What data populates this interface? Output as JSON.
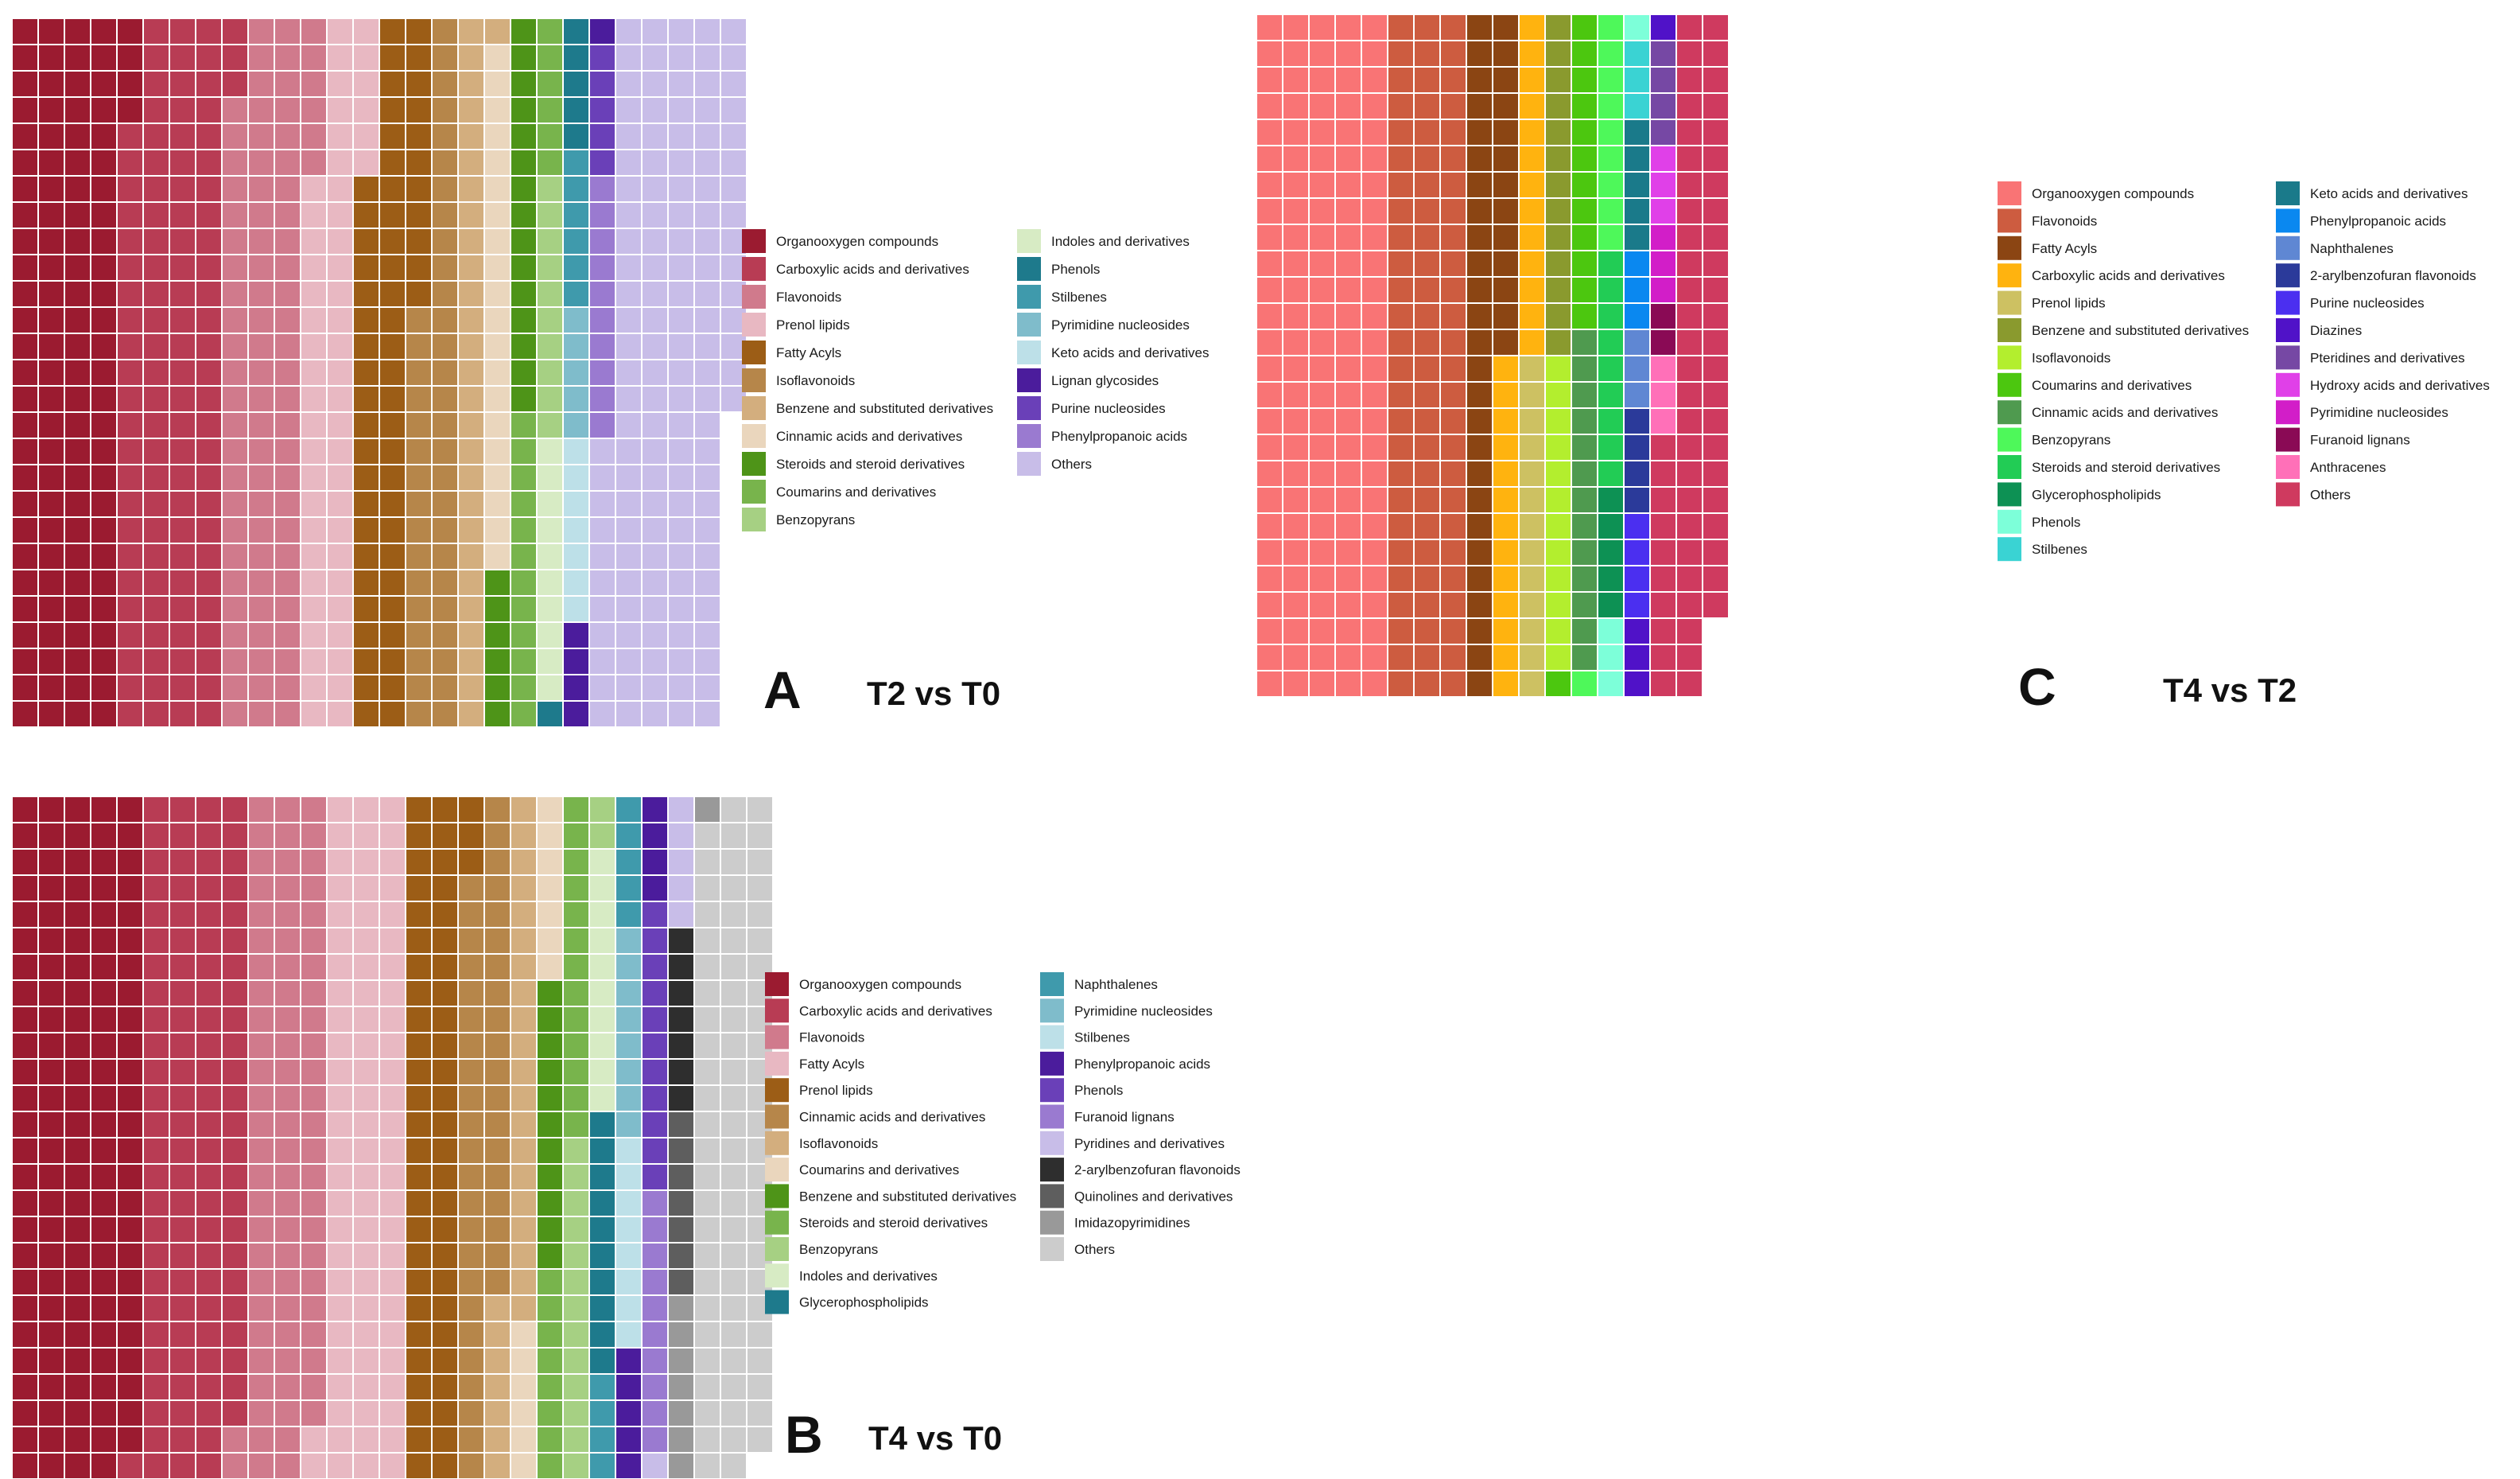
{
  "chart_data": [
    {
      "type": "waffle",
      "panel_label": "A",
      "title": "T2 vs T0",
      "unit": "one square = one metabolite",
      "legend_entries": [
        "Organooxygen compounds",
        "Carboxylic acids and derivatives",
        "Flavonoids",
        "Prenol lipids",
        "Fatty Acyls",
        "Isoflavonoids",
        "Benzene and substituted derivatives",
        "Cinnamic acids and derivatives",
        "Steroids and steroid derivatives",
        "Coumarins and derivatives",
        "Benzopyrans",
        "Indoles and derivatives",
        "Phenols",
        "Stilbenes",
        "Pyrimidine nucleosides",
        "Keto acids and derivatives",
        "Lignan glycosides",
        "Purine nucleosides",
        "Phenylpropanoic acids",
        "Others"
      ],
      "colors": [
        "#9b1b30",
        "#b83c54",
        "#d07a8c",
        "#e8b8c2",
        "#9c5d16",
        "#b6864a",
        "#d3ae7e",
        "#ead6bd",
        "#4e9418",
        "#78b44c",
        "#a6d083",
        "#d7ebc4",
        "#1e7a8c",
        "#3f9aac",
        "#7fbccb",
        "#bde0e8",
        "#4b1c9c",
        "#6a40b8",
        "#9a7ad0",
        "#c8bde8"
      ],
      "counts": [
        112,
        107,
        84,
        54,
        59,
        43,
        28,
        20,
        21,
        18,
        10,
        10,
        6,
        6,
        5,
        7,
        5,
        5,
        10,
        134
      ]
    },
    {
      "type": "waffle",
      "panel_label": "B",
      "title": "T4 vs T0",
      "unit": "one square = one metabolite",
      "legend_entries": [
        "Organooxygen compounds",
        "Carboxylic acids and derivatives",
        "Flavonoids",
        "Fatty Acyls",
        "Prenol lipids",
        "Cinnamic acids and derivatives",
        "Isoflavonoids",
        "Coumarins and derivatives",
        "Benzene and substituted derivatives",
        "Steroids and steroid derivatives",
        "Benzopyrans",
        "Indoles and derivatives",
        "Glycerophospholipids",
        "Naphthalenes",
        "Pyrimidine nucleosides",
        "Stilbenes",
        "Phenylpropanoic acids",
        "Phenols",
        "Furanoid lignans",
        "Pyridines and derivatives",
        "2-arylbenzofuran flavonoids",
        "Quinolines and derivatives",
        "Imidazopyrimidines",
        "Others"
      ],
      "colors": [
        "#9b1b30",
        "#b83c54",
        "#d07a8c",
        "#e8b8c2",
        "#9c5d16",
        "#b6864a",
        "#d3ae7e",
        "#ead6bd",
        "#4e9418",
        "#78b44c",
        "#a6d083",
        "#d7ebc4",
        "#1e7a8c",
        "#3f9aac",
        "#7fbccb",
        "#bde0e8",
        "#4b1c9c",
        "#6a40b8",
        "#9a7ad0",
        "#c8bde8",
        "#2e2e2e",
        "#5e5e5e",
        "#999999",
        "#cccccc"
      ],
      "counts": [
        133,
        107,
        81,
        84,
        57,
        43,
        28,
        14,
        11,
        22,
        16,
        10,
        10,
        10,
        8,
        8,
        10,
        11,
        10,
        7,
        7,
        7,
        9,
        78
      ]
    },
    {
      "type": "waffle",
      "panel_label": "C",
      "title": "T4 vs T2",
      "unit": "one square = one metabolite",
      "legend_entries": [
        "Organooxygen compounds",
        "Flavonoids",
        "Fatty Acyls",
        "Carboxylic acids and derivatives",
        "Prenol lipids",
        "Benzene and substituted derivatives",
        "Isoflavonoids",
        "Coumarins and derivatives",
        "Cinnamic acids and derivatives",
        "Benzopyrans",
        "Steroids and steroid derivatives",
        "Glycerophospholipids",
        "Phenols",
        "Stilbenes",
        "Keto acids and derivatives",
        "Phenylpropanoic acids",
        "Naphthalenes",
        "2-arylbenzofuran flavonoids",
        "Purine nucleosides",
        "Diazines",
        "Pteridines and derivatives",
        "Hydroxy acids and derivatives",
        "Pyrimidine nucleosides",
        "Furanoid lignans",
        "Anthracenes",
        "Others"
      ],
      "colors": [
        "#f97475",
        "#cd5c40",
        "#8b4513",
        "#ffb30f",
        "#cdc162",
        "#8a9a2e",
        "#b3ee2e",
        "#4cc70f",
        "#4f9a4f",
        "#4ef85a",
        "#22cc55",
        "#0d9154",
        "#7dffd9",
        "#3ad3d3",
        "#1a7a8a",
        "#0a88f0",
        "#5f87d3",
        "#2b3a9a",
        "#4b2ff0",
        "#5012c8",
        "#7648a4",
        "#e040e8",
        "#d21ec8",
        "#8a0a55",
        "#ff70b8",
        "#cf3a5f"
      ],
      "counts": [
        130,
        78,
        39,
        26,
        13,
        13,
        12,
        13,
        13,
        10,
        9,
        5,
        4,
        3,
        5,
        3,
        3,
        4,
        4,
        4,
        4,
        3,
        3,
        2,
        3,
        59
      ]
    }
  ]
}
